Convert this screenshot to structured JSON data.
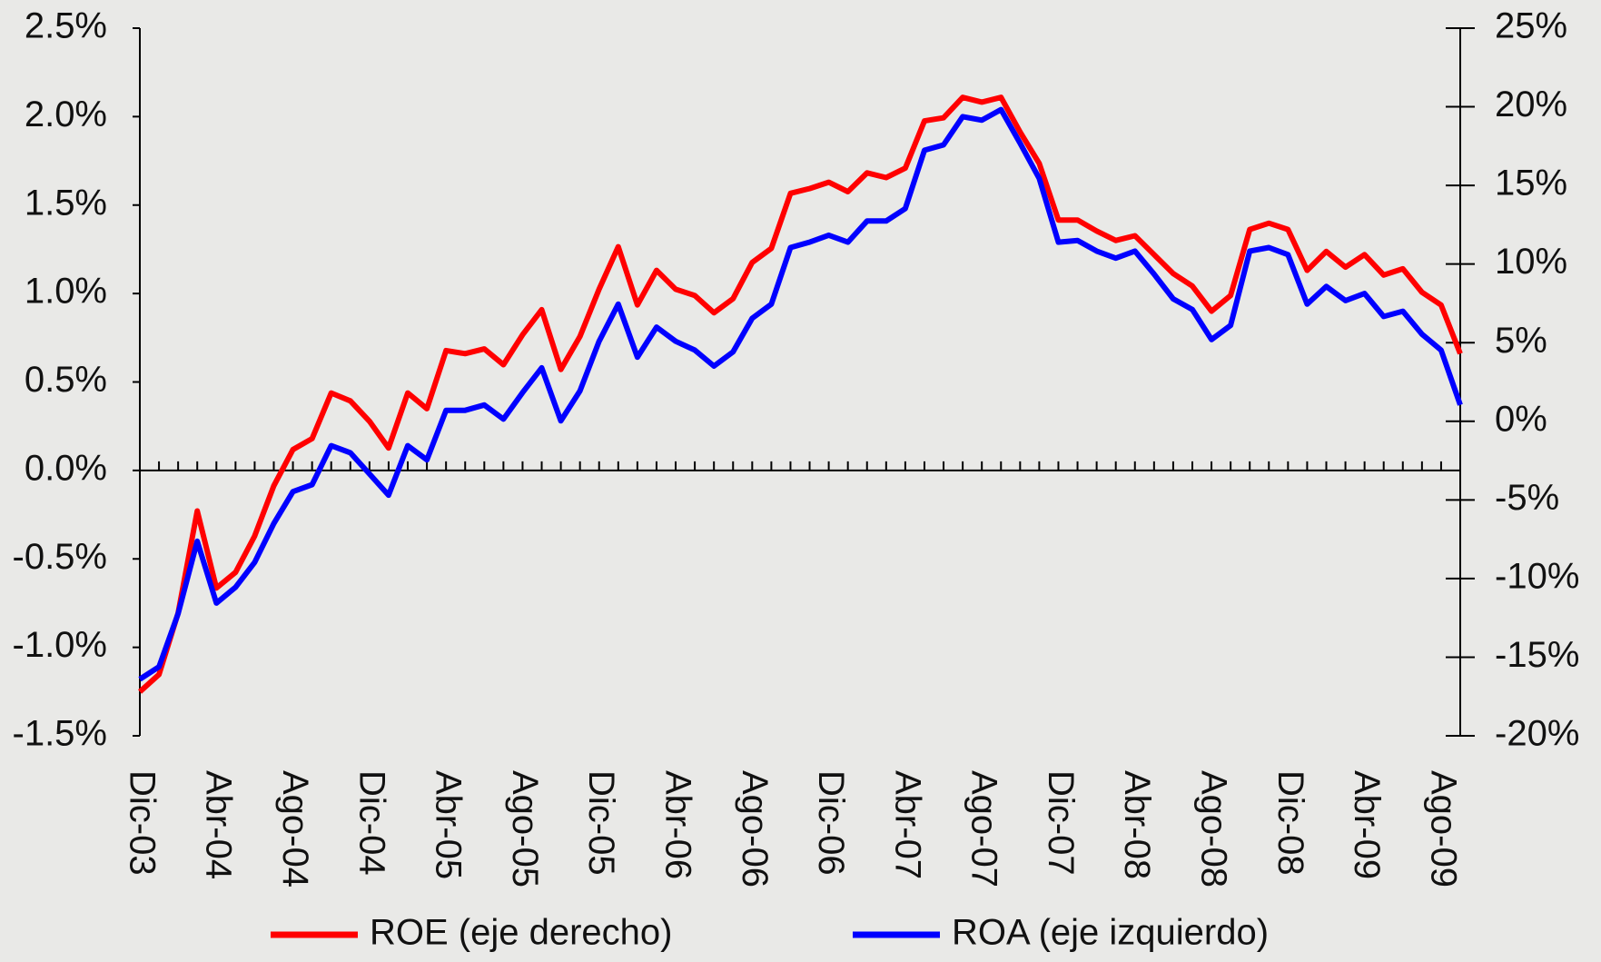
{
  "chart_data": {
    "type": "line",
    "categories": [
      "Dic-03",
      null,
      null,
      null,
      "Abr-04",
      null,
      null,
      null,
      "Ago-04",
      null,
      null,
      null,
      "Dic-04",
      null,
      null,
      null,
      "Abr-05",
      null,
      null,
      null,
      "Ago-05",
      null,
      null,
      null,
      "Dic-05",
      null,
      null,
      null,
      "Abr-06",
      null,
      null,
      null,
      "Ago-06",
      null,
      null,
      null,
      "Dic-06",
      null,
      null,
      null,
      "Abr-07",
      null,
      null,
      null,
      "Ago-07",
      null,
      null,
      null,
      "Dic-07",
      null,
      null,
      null,
      "Abr-08",
      null,
      null,
      null,
      "Ago-08",
      null,
      null,
      null,
      "Dic-08",
      null,
      null,
      null,
      "Abr-09",
      null,
      null,
      null,
      "Ago-09",
      null
    ],
    "series": [
      {
        "name": "ROE (eje derecho)",
        "color": "#ff0000",
        "axis": "y2",
        "values": [
          -17.2,
          -16.1,
          -12.2,
          -5.7,
          -10.6,
          -9.6,
          -7.3,
          -4.1,
          -1.8,
          -1.1,
          1.8,
          1.3,
          0.0,
          -1.7,
          1.8,
          0.8,
          4.5,
          4.3,
          4.6,
          3.6,
          5.5,
          7.1,
          3.3,
          5.4,
          8.4,
          11.1,
          7.4,
          9.6,
          8.4,
          8.0,
          6.9,
          7.8,
          10.1,
          11.0,
          14.5,
          14.8,
          15.2,
          14.6,
          15.8,
          15.5,
          16.1,
          19.1,
          19.3,
          20.6,
          20.3,
          20.6,
          18.4,
          16.4,
          12.8,
          12.8,
          12.1,
          11.5,
          11.8,
          10.6,
          9.4,
          8.6,
          7.0,
          8.0,
          12.2,
          12.6,
          12.2,
          9.6,
          10.8,
          9.8,
          10.6,
          9.3,
          9.7,
          8.2,
          7.4,
          4.3
        ]
      },
      {
        "name": "ROA (eje izquierdo)",
        "color": "#0000ff",
        "values": [
          -1.18,
          -1.11,
          -0.81,
          -0.4,
          -0.75,
          -0.66,
          -0.52,
          -0.3,
          -0.12,
          -0.08,
          0.14,
          0.1,
          -0.02,
          -0.14,
          0.14,
          0.06,
          0.34,
          0.34,
          0.37,
          0.29,
          0.44,
          0.58,
          0.28,
          0.45,
          0.73,
          0.94,
          0.64,
          0.81,
          0.73,
          0.68,
          0.59,
          0.67,
          0.86,
          0.94,
          1.26,
          1.29,
          1.33,
          1.29,
          1.41,
          1.41,
          1.48,
          1.81,
          1.84,
          2.0,
          1.98,
          2.04,
          1.85,
          1.65,
          1.29,
          1.3,
          1.24,
          1.2,
          1.24,
          1.11,
          0.97,
          0.91,
          0.74,
          0.82,
          1.24,
          1.26,
          1.22,
          0.94,
          1.04,
          0.96,
          1.0,
          0.87,
          0.9,
          0.77,
          0.68,
          0.37
        ]
      }
    ],
    "ylim": [
      -1.5,
      2.5
    ],
    "yticks": [
      {
        "value": -1.5,
        "label": "-1.5%"
      },
      {
        "value": -1.0,
        "label": "-1.0%"
      },
      {
        "value": -0.5,
        "label": "-0.5%"
      },
      {
        "value": 0,
        "label": "0.0%"
      },
      {
        "value": 0.5,
        "label": "0.5%"
      },
      {
        "value": 1.0,
        "label": "1.0%"
      },
      {
        "value": 1.5,
        "label": "1.5%"
      },
      {
        "value": 2.0,
        "label": "2.0%"
      },
      {
        "value": 2.5,
        "label": "2.5%"
      }
    ],
    "y2lim": [
      -20,
      25
    ],
    "y2ticks": [
      {
        "value": -20,
        "label": "-20%"
      },
      {
        "value": -15,
        "label": "-15%"
      },
      {
        "value": -10,
        "label": "-10%"
      },
      {
        "value": -5,
        "label": "-5%"
      },
      {
        "value": 0,
        "label": "0%"
      },
      {
        "value": 5,
        "label": "5%"
      },
      {
        "value": 10,
        "label": "10%"
      },
      {
        "value": 15,
        "label": "15%"
      },
      {
        "value": 20,
        "label": "20%"
      },
      {
        "value": 25,
        "label": "25%"
      }
    ],
    "grid": false,
    "legend": "bottom"
  }
}
